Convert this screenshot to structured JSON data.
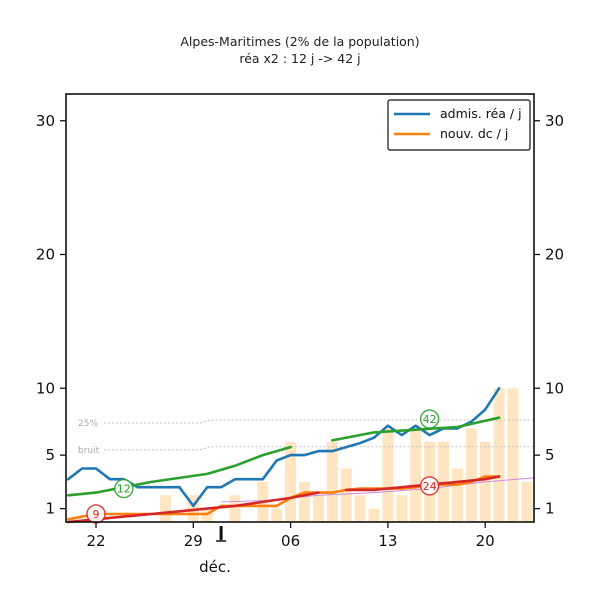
{
  "chart_data": {
    "type": "line",
    "title": "Alpes-Maritimes (2% de la population)",
    "subtitle": "réa x2 : 12 j -> 42 j",
    "ylim": [
      0,
      32
    ],
    "yticks": [
      1,
      5,
      10,
      20,
      30
    ],
    "xticks": [
      {
        "day": 0,
        "label": "22"
      },
      {
        "day": 7,
        "label": "29"
      },
      {
        "day": 14,
        "label": "06"
      },
      {
        "day": 21,
        "label": "13"
      },
      {
        "day": 28,
        "label": "20"
      }
    ],
    "xrange": [
      -2,
      33
    ],
    "month_label": "déc.",
    "month_marker_day": 9,
    "reference_lines": [
      {
        "label": "25%",
        "y": 7.4
      },
      {
        "label": "bruit",
        "y": 5.4
      }
    ],
    "legend": [
      {
        "label": "admis. réa / j",
        "color": "#1f77b4"
      },
      {
        "label": "nouv. dc / j",
        "color": "#ff7f0e"
      }
    ],
    "bars": {
      "color": "#ffdcae",
      "days": [
        -2,
        -1,
        0,
        1,
        2,
        3,
        4,
        5,
        6,
        7,
        8,
        9,
        10,
        11,
        12,
        13,
        14,
        15,
        16,
        17,
        18,
        19,
        20,
        21,
        22,
        23,
        24,
        25,
        26,
        27,
        28,
        29,
        30,
        31,
        32
      ],
      "values": [
        0,
        0,
        1,
        0,
        0,
        0,
        0,
        2,
        0,
        2,
        1,
        0,
        2,
        0,
        3,
        1,
        6,
        3,
        2,
        6,
        4,
        2,
        1,
        7,
        2,
        7,
        6,
        6,
        4,
        7,
        6,
        10,
        10,
        3,
        3
      ]
    },
    "series": [
      {
        "name": "admis. réa / j",
        "color": "#1f77b4",
        "points": [
          [
            -2,
            3.2
          ],
          [
            -1,
            4
          ],
          [
            0,
            4
          ],
          [
            1,
            3.2
          ],
          [
            2,
            3.2
          ],
          [
            3,
            2.6
          ],
          [
            4,
            2.6
          ],
          [
            5,
            2.6
          ],
          [
            6,
            2.6
          ],
          [
            7,
            1.2
          ],
          [
            8,
            2.6
          ],
          [
            9,
            2.6
          ],
          [
            10,
            3.2
          ],
          [
            11,
            3.2
          ],
          [
            12,
            3.2
          ],
          [
            13,
            4.6
          ],
          [
            14,
            5
          ],
          [
            15,
            5
          ],
          [
            16,
            5.3
          ],
          [
            17,
            5.3
          ],
          [
            18,
            5.6
          ],
          [
            19,
            5.9
          ],
          [
            20,
            6.3
          ],
          [
            21,
            7.2
          ],
          [
            22,
            6.5
          ],
          [
            23,
            7.2
          ],
          [
            24,
            6.5
          ],
          [
            25,
            7
          ],
          [
            26,
            7
          ],
          [
            27,
            7.5
          ],
          [
            28,
            8.4
          ],
          [
            29,
            10
          ]
        ]
      },
      {
        "name": "nouv. dc / j",
        "color": "#ff7f0e",
        "points": [
          [
            -2,
            0.2
          ],
          [
            -1,
            0.4
          ],
          [
            0,
            0.6
          ],
          [
            1,
            0.6
          ],
          [
            2,
            0.6
          ],
          [
            3,
            0.6
          ],
          [
            4,
            0.6
          ],
          [
            5,
            0.6
          ],
          [
            6,
            0.6
          ],
          [
            7,
            0.6
          ],
          [
            8,
            0.6
          ],
          [
            9,
            1.2
          ],
          [
            10,
            1.2
          ],
          [
            11,
            1.2
          ],
          [
            12,
            1.2
          ],
          [
            13,
            1.2
          ],
          [
            14,
            1.8
          ],
          [
            15,
            2.2
          ],
          [
            16,
            2.2
          ],
          [
            17,
            2.2
          ],
          [
            18,
            2.4
          ],
          [
            19,
            2.5
          ],
          [
            20,
            2.5
          ],
          [
            21,
            2.5
          ],
          [
            22,
            2.5
          ],
          [
            23,
            2.6
          ],
          [
            24,
            2.8
          ],
          [
            25,
            2.8
          ],
          [
            26,
            2.8
          ],
          [
            27,
            3
          ],
          [
            28,
            3.4
          ],
          [
            29,
            3.4
          ]
        ]
      },
      {
        "name": "admis. réa / j (tendance)",
        "color": "#2ca02c",
        "points": [
          [
            -2,
            2.0
          ],
          [
            0,
            2.2
          ],
          [
            2,
            2.6
          ],
          [
            4,
            3.0
          ],
          [
            6,
            3.3
          ],
          [
            8,
            3.6
          ],
          [
            10,
            4.2
          ],
          [
            12,
            5.0
          ],
          [
            14,
            5.6
          ],
          [
            17,
            6.1
          ],
          [
            20,
            6.7
          ],
          [
            23,
            6.9
          ],
          [
            26,
            7.1
          ],
          [
            29,
            7.8
          ]
        ],
        "break_after": 14
      },
      {
        "name": "nouv. dc / j (tendance)",
        "color": "#d62728",
        "points": [
          [
            -2,
            0
          ],
          [
            0,
            0.2
          ],
          [
            2,
            0.4
          ],
          [
            4,
            0.6
          ],
          [
            6,
            0.8
          ],
          [
            8,
            1.0
          ],
          [
            10,
            1.2
          ],
          [
            12,
            1.5
          ],
          [
            14,
            1.8
          ],
          [
            16,
            2.2
          ],
          [
            18,
            2.4
          ],
          [
            20,
            2.4
          ],
          [
            22,
            2.6
          ],
          [
            24,
            2.8
          ],
          [
            26,
            3.0
          ],
          [
            28,
            3.2
          ],
          [
            29,
            3.4
          ]
        ],
        "break_after": 16
      }
    ],
    "thin_line": {
      "color": "#cc88dd",
      "points": [
        [
          9,
          1.5
        ],
        [
          12,
          1.6
        ],
        [
          16,
          2.0
        ],
        [
          20,
          2.2
        ],
        [
          24,
          2.5
        ],
        [
          28,
          3.0
        ],
        [
          32,
          3.3
        ]
      ]
    },
    "badges": [
      {
        "label": "12",
        "day": 2,
        "y": 2.5,
        "color": "#2ca02c"
      },
      {
        "label": "9",
        "day": 0,
        "y": 0.6,
        "color": "#d62728"
      },
      {
        "label": "42",
        "day": 24,
        "y": 7.7,
        "color": "#2ca02c"
      },
      {
        "label": "24",
        "day": 24,
        "y": 2.7,
        "color": "#d62728"
      }
    ]
  }
}
